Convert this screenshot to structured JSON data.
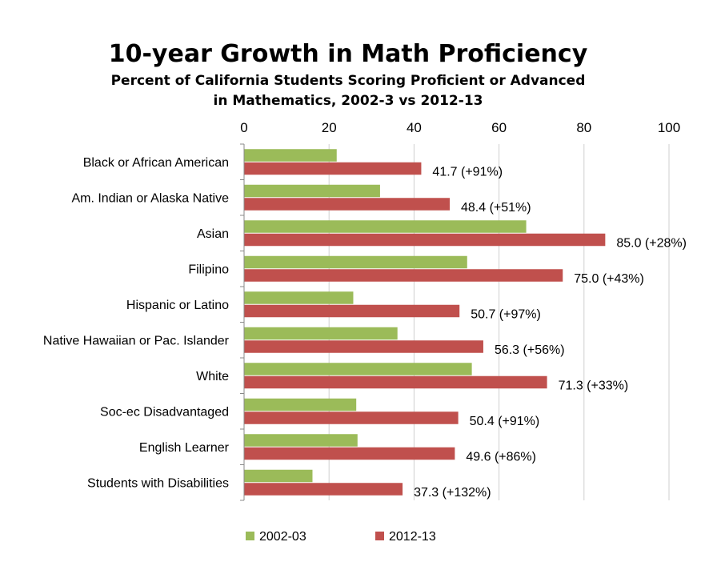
{
  "chart_data": {
    "type": "bar",
    "orientation": "horizontal",
    "title": "10-year Growth in Math Proficiency",
    "subtitle_lines": [
      "Percent of California Students Scoring Proficient or Advanced",
      "in Mathematics, 2002-3 vs 2012-13"
    ],
    "xlabel": "",
    "ylabel": "",
    "xlim": [
      0,
      100
    ],
    "xticks": [
      0,
      20,
      40,
      60,
      80,
      100
    ],
    "grid": true,
    "legend_position": "bottom",
    "categories": [
      "Black or African American",
      "Am. Indian or Alaska Native",
      "Asian",
      "Filipino",
      "Hispanic or Latino",
      "Native Hawaiian or Pac. Islander",
      "White",
      "Soc-ec Disadvantaged",
      "English Learner",
      "Students with Disabilities"
    ],
    "series": [
      {
        "name": "2002-03",
        "color": "#9bbb59",
        "values": [
          21.8,
          32.0,
          66.4,
          52.5,
          25.7,
          36.1,
          53.6,
          26.4,
          26.7,
          16.1
        ]
      },
      {
        "name": "2012-13",
        "color": "#c0504d",
        "values": [
          41.7,
          48.4,
          85.0,
          75.0,
          50.7,
          56.3,
          71.3,
          50.4,
          49.6,
          37.3
        ],
        "data_labels": [
          "41.7 (+91%)",
          "48.4 (+51%)",
          "85.0 (+28%)",
          "75.0 (+43%)",
          "50.7 (+97%)",
          "56.3 (+56%)",
          "71.3 (+33%)",
          "50.4 (+91%)",
          "49.6 (+86%)",
          "37.3 (+132%)"
        ]
      }
    ]
  }
}
